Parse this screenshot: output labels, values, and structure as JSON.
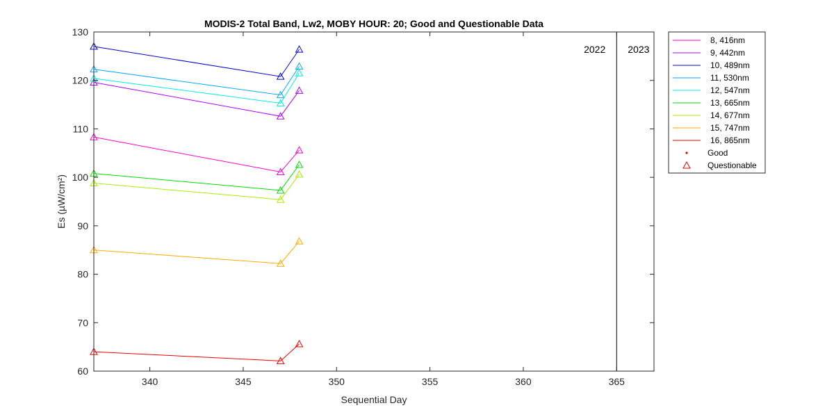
{
  "chart_data": {
    "type": "line",
    "title": "MODIS-2 Total Band,  Lw2, MOBY HOUR: 20;  Good and Questionable Data",
    "xlabel": "Sequential Day",
    "ylabel": "Es (µW/cm²)",
    "xlim": [
      337,
      367
    ],
    "ylim": [
      60,
      130
    ],
    "xticks": [
      340,
      345,
      350,
      355,
      360,
      365
    ],
    "yticks": [
      60,
      70,
      80,
      90,
      100,
      110,
      120,
      130
    ],
    "year_divider_x": 365,
    "year_labels": [
      "2022",
      "2023"
    ],
    "x": [
      337,
      347,
      348
    ],
    "series": [
      {
        "name": "8, 416nm",
        "color": "#ff00cc",
        "values": [
          108.3,
          101.1,
          105.6
        ]
      },
      {
        "name": "9, 442nm",
        "color": "#aa00ff",
        "values": [
          119.6,
          112.6,
          117.9
        ]
      },
      {
        "name": "10, 489nm",
        "color": "#0000cc",
        "values": [
          127.0,
          120.8,
          126.4
        ]
      },
      {
        "name": "11, 530nm",
        "color": "#00aaff",
        "values": [
          122.3,
          117.0,
          122.9
        ]
      },
      {
        "name": "12, 547nm",
        "color": "#00eedd",
        "values": [
          120.4,
          115.3,
          121.5
        ]
      },
      {
        "name": "13, 665nm",
        "color": "#00dd00",
        "values": [
          100.8,
          97.3,
          102.6
        ]
      },
      {
        "name": "14, 677nm",
        "color": "#aaee00",
        "values": [
          98.8,
          95.4,
          100.6
        ]
      },
      {
        "name": "15, 747nm",
        "color": "#ffaa00",
        "values": [
          85.0,
          82.2,
          86.8
        ]
      },
      {
        "name": "16, 865nm",
        "color": "#ee0000",
        "values": [
          64.0,
          62.1,
          65.6
        ]
      }
    ],
    "markers": [
      {
        "name": "Good",
        "symbol": "dot",
        "color": "#ee0000"
      },
      {
        "name": "Questionable",
        "symbol": "triangle",
        "color": "#ee0000"
      }
    ],
    "points_quality": "Questionable",
    "grid": false,
    "legend_position": "outside-right"
  }
}
